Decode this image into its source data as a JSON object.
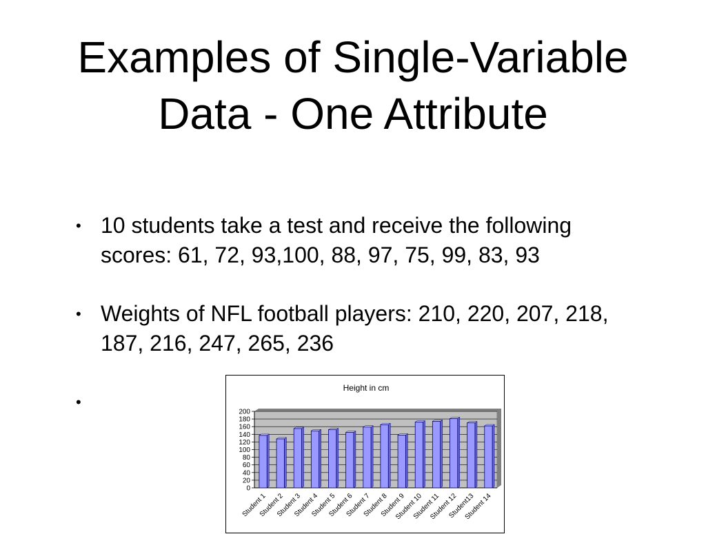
{
  "slide": {
    "title_line1": "Examples of Single-Variable",
    "title_line2": "Data - One Attribute",
    "bullets": [
      {
        "marker": "•",
        "text": "10 students take a test and receive the following scores: 61, 72, 93,100, 88, 97, 75, 99, 83, 93"
      },
      {
        "marker": "•",
        "text": "Weights of NFL football players: 210, 220, 207, 218, 187, 216, 247, 265, 236"
      },
      {
        "marker": "•",
        "text": ""
      }
    ]
  },
  "chart_data": {
    "type": "bar",
    "title": "Height in cm",
    "xlabel": "",
    "ylabel": "",
    "categories": [
      "Student 1",
      "Student 2",
      "Student 3",
      "Student 4",
      "Student 5",
      "Student 6",
      "Student 7",
      "Student 8",
      "Student 9",
      "Student 10",
      "Student 11",
      "Student 12",
      "Student13",
      "Student 14"
    ],
    "values": [
      137,
      128,
      155,
      149,
      152,
      145,
      159,
      165,
      138,
      172,
      174,
      181,
      170,
      162
    ],
    "ylim": [
      0,
      200
    ],
    "yticks": [
      0,
      20,
      40,
      60,
      80,
      100,
      120,
      140,
      160,
      180,
      200
    ],
    "grid": true,
    "legend": "none",
    "colors": {
      "bar_fill": "#9999ff",
      "bar_stroke": "#000080",
      "plot_background": "#c0c0c0",
      "gridline": "#000000"
    }
  }
}
